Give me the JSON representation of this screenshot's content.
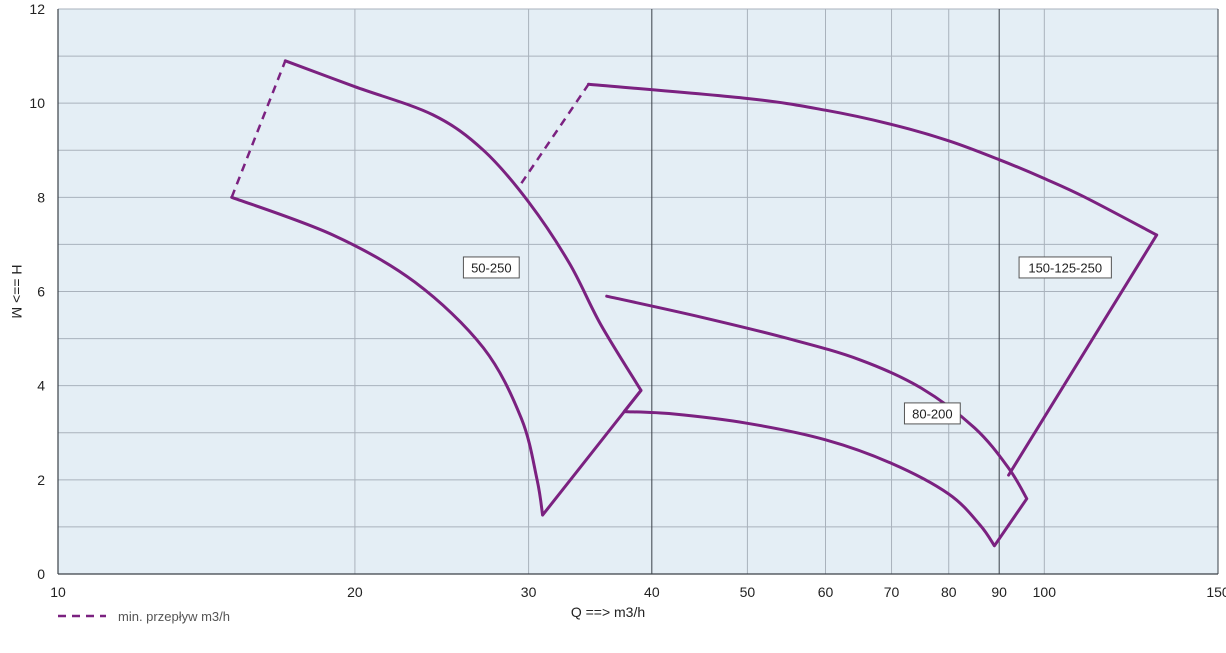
{
  "colors": {
    "plot_background": "#e4eef5",
    "grid_major": "#3a4048",
    "grid_minor": "#a9b2bc",
    "curve": "#7b2180",
    "text": "#222222"
  },
  "chart_data": {
    "type": "line",
    "x_scale": "log",
    "xlim": [
      10,
      150
    ],
    "ylim": [
      0,
      12
    ],
    "xlabel": "Q ==> m3/h",
    "ylabel": "H ==> M",
    "x_ticks": [
      10,
      20,
      30,
      40,
      50,
      60,
      70,
      80,
      90,
      100,
      150
    ],
    "y_ticks": [
      0,
      2,
      4,
      6,
      8,
      10,
      12
    ],
    "x_major_gridlines": [
      10,
      40,
      90,
      150
    ],
    "x_minor_gridlines": [
      20,
      30,
      50,
      60,
      70,
      80,
      100
    ],
    "y_gridlines": [
      1,
      2,
      3,
      4,
      5,
      6,
      7,
      8,
      9,
      10,
      11,
      12
    ],
    "grid": true,
    "series": [
      {
        "name": "50-250",
        "outline": [
          [
            17,
            10.9
          ],
          [
            20,
            10.35
          ],
          [
            24,
            9.75
          ],
          [
            27,
            9.0
          ],
          [
            30,
            7.9
          ],
          [
            33,
            6.6
          ],
          [
            35.5,
            5.3
          ],
          [
            39,
            3.9
          ],
          [
            31,
            1.25
          ],
          [
            30.6,
            2.0
          ],
          [
            29.5,
            3.3
          ],
          [
            27,
            4.8
          ],
          [
            23,
            6.2
          ],
          [
            19,
            7.2
          ],
          [
            15,
            8.0
          ]
        ],
        "min_flow_line": [
          [
            15,
            8.0
          ],
          [
            17,
            10.9
          ]
        ]
      },
      {
        "name": "150-125-250",
        "outline": [
          [
            34.5,
            10.4
          ],
          [
            50,
            10.1
          ],
          [
            60,
            9.85
          ],
          [
            70,
            9.55
          ],
          [
            80,
            9.2
          ],
          [
            90,
            8.8
          ],
          [
            100,
            8.4
          ],
          [
            110,
            8.0
          ],
          [
            130,
            7.2
          ],
          [
            92,
            2.1
          ]
        ],
        "min_flow_line": [
          [
            29.5,
            8.3
          ],
          [
            34.5,
            10.4
          ]
        ]
      },
      {
        "name": "80-200",
        "outline": [
          [
            36,
            5.9
          ],
          [
            45,
            5.45
          ],
          [
            55,
            5.0
          ],
          [
            65,
            4.55
          ],
          [
            75,
            3.95
          ],
          [
            85,
            3.1
          ],
          [
            92,
            2.25
          ],
          [
            96,
            1.6
          ],
          [
            89,
            0.6
          ],
          [
            86,
            1.05
          ],
          [
            80,
            1.7
          ],
          [
            70,
            2.35
          ],
          [
            60,
            2.85
          ],
          [
            50,
            3.2
          ],
          [
            42,
            3.4
          ],
          [
            37.5,
            3.45
          ],
          [
            39,
            3.9
          ]
        ]
      }
    ],
    "region_labels": [
      {
        "text": "50-250",
        "x": 27.5,
        "y": 6.5
      },
      {
        "text": "150-125-250",
        "x": 105,
        "y": 6.5
      },
      {
        "text": "80-200",
        "x": 77,
        "y": 3.4
      }
    ],
    "legend": {
      "position": "bottom-left",
      "entries": [
        {
          "label": "min. przepływ m3/h",
          "style": "dashed"
        }
      ]
    }
  }
}
